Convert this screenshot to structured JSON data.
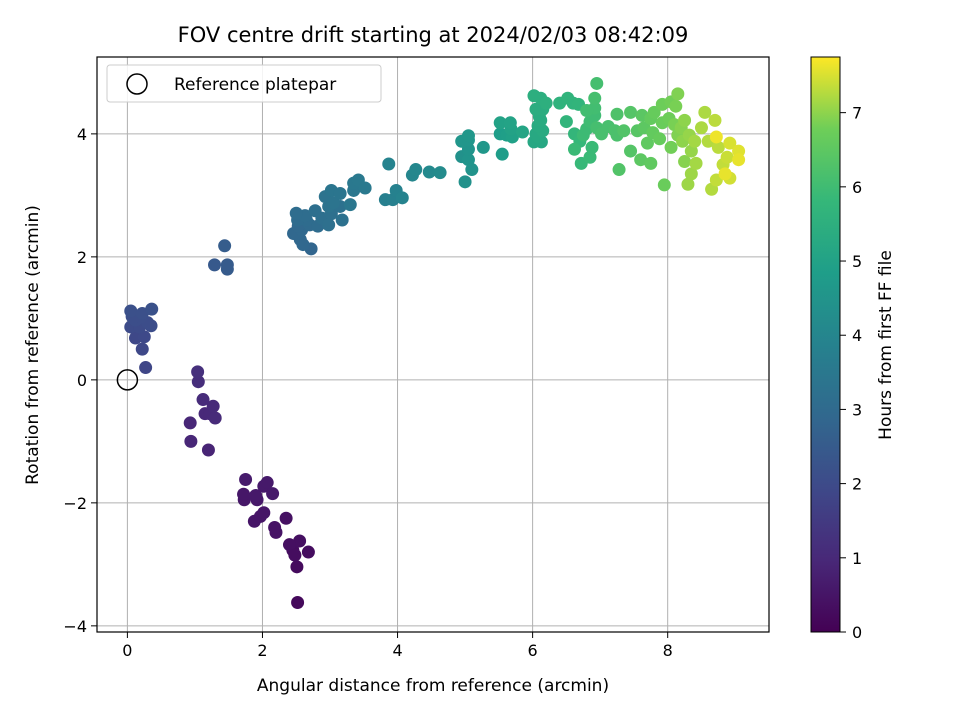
{
  "chart_data": {
    "type": "scatter",
    "title": "FOV centre drift starting at 2024/02/03 08:42:09",
    "xlabel": "Angular distance from reference (arcmin)",
    "ylabel": "Rotation from reference (arcmin)",
    "xlim": [
      -0.45,
      9.5
    ],
    "ylim": [
      -4.1,
      5.25
    ],
    "x_ticks": [
      0,
      2,
      4,
      6,
      8
    ],
    "y_ticks": [
      -4,
      -2,
      0,
      2,
      4
    ],
    "x_tick_labels": [
      "0",
      "2",
      "4",
      "6",
      "8"
    ],
    "y_tick_labels": [
      "−4",
      "−2",
      "0",
      "2",
      "4"
    ],
    "grid": true,
    "legend": {
      "placement": "upper-left",
      "entries": [
        {
          "label": "Reference platepar",
          "marker": "open-circle"
        }
      ]
    },
    "reference_point": {
      "x": 0,
      "y": 0
    },
    "colorbar": {
      "label": "Hours from first FF file",
      "range": [
        0,
        7.75
      ],
      "ticks": [
        0,
        1,
        2,
        3,
        4,
        5,
        6,
        7
      ],
      "tick_labels": [
        "0",
        "1",
        "2",
        "3",
        "4",
        "5",
        "6",
        "7"
      ],
      "colormap": "viridis"
    },
    "points": [
      [
        2.52,
        -3.62,
        0.2
      ],
      [
        2.51,
        -3.04,
        0.25
      ],
      [
        2.68,
        -2.8,
        0.3
      ],
      [
        2.45,
        -2.77,
        0.3
      ],
      [
        2.55,
        -2.62,
        0.35
      ],
      [
        2.4,
        -2.68,
        0.35
      ],
      [
        2.48,
        -2.85,
        0.3
      ],
      [
        2.35,
        -2.25,
        0.4
      ],
      [
        2.2,
        -2.48,
        0.45
      ],
      [
        2.18,
        -2.4,
        0.45
      ],
      [
        1.88,
        -2.3,
        0.5
      ],
      [
        1.97,
        -2.22,
        0.5
      ],
      [
        2.02,
        -2.16,
        0.5
      ],
      [
        1.73,
        -1.95,
        0.55
      ],
      [
        1.72,
        -1.86,
        0.55
      ],
      [
        1.92,
        -1.95,
        0.55
      ],
      [
        1.9,
        -1.88,
        0.6
      ],
      [
        2.02,
        -1.73,
        0.6
      ],
      [
        2.07,
        -1.67,
        0.6
      ],
      [
        2.15,
        -1.85,
        0.6
      ],
      [
        1.75,
        -1.62,
        0.65
      ],
      [
        1.2,
        -1.14,
        0.9
      ],
      [
        0.94,
        -1.0,
        0.95
      ],
      [
        0.93,
        -0.7,
        0.95
      ],
      [
        1.15,
        -0.55,
        1.0
      ],
      [
        1.22,
        -0.55,
        1.0
      ],
      [
        1.3,
        -0.62,
        1.05
      ],
      [
        1.27,
        -0.43,
        1.05
      ],
      [
        1.12,
        -0.32,
        1.1
      ],
      [
        1.05,
        -0.03,
        1.15
      ],
      [
        1.04,
        0.13,
        1.2
      ],
      [
        0.27,
        0.2,
        1.85
      ],
      [
        0.22,
        0.5,
        1.9
      ],
      [
        0.12,
        0.68,
        1.9
      ],
      [
        0.25,
        0.7,
        1.95
      ],
      [
        0.05,
        0.86,
        2.0
      ],
      [
        0.18,
        0.86,
        2.0
      ],
      [
        0.35,
        0.88,
        2.05
      ],
      [
        0.3,
        0.93,
        2.05
      ],
      [
        0.12,
        0.97,
        2.1
      ],
      [
        0.07,
        1.03,
        2.1
      ],
      [
        0.2,
        1.02,
        2.1
      ],
      [
        0.05,
        1.12,
        2.15
      ],
      [
        0.22,
        1.08,
        2.15
      ],
      [
        0.36,
        1.15,
        2.2
      ],
      [
        1.29,
        1.87,
        2.45
      ],
      [
        1.48,
        1.8,
        2.5
      ],
      [
        1.48,
        1.87,
        2.5
      ],
      [
        1.44,
        2.18,
        2.55
      ],
      [
        2.72,
        2.13,
        2.85
      ],
      [
        2.6,
        2.2,
        2.9
      ],
      [
        2.56,
        2.28,
        2.9
      ],
      [
        2.46,
        2.38,
        2.9
      ],
      [
        2.58,
        2.44,
        2.95
      ],
      [
        2.53,
        2.5,
        2.95
      ],
      [
        2.7,
        2.52,
        3.0
      ],
      [
        2.82,
        2.5,
        3.05
      ],
      [
        2.65,
        2.6,
        3.05
      ],
      [
        2.52,
        2.6,
        3.05
      ],
      [
        2.63,
        2.67,
        3.1
      ],
      [
        2.5,
        2.71,
        3.1
      ],
      [
        2.78,
        2.75,
        3.15
      ],
      [
        2.88,
        2.63,
        3.15
      ],
      [
        3.02,
        2.7,
        3.2
      ],
      [
        2.98,
        2.52,
        3.2
      ],
      [
        3.18,
        2.6,
        3.25
      ],
      [
        3.15,
        2.82,
        3.25
      ],
      [
        2.98,
        2.82,
        3.3
      ],
      [
        2.93,
        2.98,
        3.3
      ],
      [
        3.05,
        2.88,
        3.35
      ],
      [
        3.02,
        3.08,
        3.4
      ],
      [
        3.15,
        3.03,
        3.4
      ],
      [
        3.35,
        3.08,
        3.45
      ],
      [
        3.3,
        2.85,
        3.45
      ],
      [
        3.35,
        3.2,
        3.5
      ],
      [
        3.42,
        3.25,
        3.55
      ],
      [
        3.52,
        3.12,
        3.55
      ],
      [
        3.82,
        2.93,
        3.75
      ],
      [
        3.93,
        2.93,
        3.8
      ],
      [
        3.98,
        3.08,
        3.85
      ],
      [
        4.07,
        2.96,
        3.9
      ],
      [
        3.87,
        3.51,
        3.9
      ],
      [
        4.22,
        3.33,
        4.0
      ],
      [
        4.27,
        3.42,
        4.05
      ],
      [
        4.47,
        3.38,
        4.1
      ],
      [
        4.63,
        3.37,
        4.2
      ],
      [
        5.0,
        3.22,
        4.4
      ],
      [
        4.95,
        3.63,
        4.4
      ],
      [
        5.1,
        3.42,
        4.45
      ],
      [
        5.05,
        3.58,
        4.5
      ],
      [
        5.05,
        3.75,
        4.5
      ],
      [
        4.95,
        3.88,
        4.55
      ],
      [
        5.05,
        3.9,
        4.55
      ],
      [
        5.05,
        3.97,
        4.6
      ],
      [
        5.27,
        3.78,
        4.6
      ],
      [
        5.55,
        3.67,
        4.8
      ],
      [
        5.52,
        4.0,
        4.85
      ],
      [
        5.62,
        3.98,
        4.9
      ],
      [
        5.7,
        3.95,
        4.95
      ],
      [
        5.68,
        4.08,
        5.0
      ],
      [
        5.52,
        4.18,
        5.0
      ],
      [
        5.67,
        4.18,
        5.05
      ],
      [
        5.85,
        4.03,
        5.1
      ],
      [
        6.02,
        3.87,
        5.2
      ],
      [
        6.13,
        3.87,
        5.2
      ],
      [
        6.08,
        3.95,
        5.25
      ],
      [
        6.05,
        4.0,
        5.25
      ],
      [
        6.15,
        4.05,
        5.3
      ],
      [
        6.08,
        4.13,
        5.3
      ],
      [
        6.12,
        4.22,
        5.35
      ],
      [
        6.1,
        4.28,
        5.35
      ],
      [
        6.05,
        4.4,
        5.4
      ],
      [
        6.15,
        4.4,
        5.4
      ],
      [
        6.02,
        4.62,
        5.45
      ],
      [
        6.12,
        4.58,
        5.45
      ],
      [
        6.2,
        4.5,
        5.5
      ],
      [
        6.4,
        4.5,
        5.6
      ],
      [
        6.52,
        4.58,
        5.65
      ],
      [
        6.6,
        4.5,
        5.65
      ],
      [
        6.68,
        4.48,
        5.7
      ],
      [
        6.5,
        4.2,
        5.7
      ],
      [
        6.62,
        4.0,
        5.75
      ],
      [
        6.7,
        3.88,
        5.8
      ],
      [
        6.72,
        3.52,
        5.85
      ],
      [
        6.85,
        3.62,
        5.9
      ],
      [
        6.62,
        3.75,
        5.9
      ],
      [
        6.88,
        3.78,
        5.9
      ],
      [
        6.75,
        3.98,
        5.95
      ],
      [
        6.8,
        4.08,
        5.95
      ],
      [
        6.85,
        4.2,
        6.0
      ],
      [
        6.92,
        4.3,
        6.0
      ],
      [
        6.92,
        4.42,
        6.05
      ],
      [
        6.8,
        4.38,
        6.05
      ],
      [
        6.92,
        4.58,
        6.1
      ],
      [
        6.95,
        4.82,
        6.1
      ],
      [
        6.95,
        4.1,
        6.1
      ],
      [
        7.02,
        4.0,
        6.15
      ],
      [
        7.12,
        4.12,
        6.15
      ],
      [
        7.22,
        4.05,
        6.2
      ],
      [
        7.25,
        3.98,
        6.2
      ],
      [
        7.25,
        4.32,
        6.25
      ],
      [
        7.35,
        4.05,
        6.3
      ],
      [
        7.28,
        3.42,
        6.3
      ],
      [
        7.45,
        3.72,
        6.35
      ],
      [
        7.45,
        4.35,
        6.35
      ],
      [
        7.55,
        4.05,
        6.4
      ],
      [
        7.62,
        4.3,
        6.45
      ],
      [
        7.65,
        4.1,
        6.5
      ],
      [
        7.6,
        3.58,
        6.5
      ],
      [
        7.75,
        3.52,
        6.55
      ],
      [
        7.7,
        3.85,
        6.55
      ],
      [
        7.78,
        4.02,
        6.6
      ],
      [
        7.75,
        4.25,
        6.6
      ],
      [
        7.8,
        4.35,
        6.65
      ],
      [
        7.88,
        3.92,
        6.65
      ],
      [
        7.92,
        4.18,
        6.7
      ],
      [
        7.95,
        3.17,
        6.7
      ],
      [
        7.92,
        4.48,
        6.75
      ],
      [
        8.02,
        4.25,
        6.75
      ],
      [
        8.05,
        4.52,
        6.8
      ],
      [
        8.05,
        3.78,
        6.8
      ],
      [
        8.1,
        4.15,
        6.85
      ],
      [
        8.12,
        4.45,
        6.85
      ],
      [
        8.15,
        3.98,
        6.9
      ],
      [
        8.15,
        4.65,
        6.9
      ],
      [
        8.25,
        3.55,
        6.95
      ],
      [
        8.2,
        4.1,
        6.95
      ],
      [
        8.22,
        3.88,
        7.0
      ],
      [
        8.25,
        4.22,
        7.0
      ],
      [
        8.32,
        3.98,
        7.05
      ],
      [
        8.35,
        3.72,
        7.05
      ],
      [
        8.35,
        3.35,
        7.1
      ],
      [
        8.3,
        3.18,
        7.1
      ],
      [
        8.42,
        3.52,
        7.15
      ],
      [
        8.4,
        3.88,
        7.15
      ],
      [
        8.5,
        4.1,
        7.2
      ],
      [
        8.55,
        4.35,
        7.2
      ],
      [
        8.6,
        3.88,
        7.25
      ],
      [
        8.65,
        3.1,
        7.25
      ],
      [
        8.7,
        4.22,
        7.3
      ],
      [
        8.75,
        3.78,
        7.3
      ],
      [
        8.72,
        3.25,
        7.35
      ],
      [
        8.82,
        3.5,
        7.35
      ],
      [
        8.88,
        3.62,
        7.4
      ],
      [
        8.92,
        3.28,
        7.45
      ],
      [
        8.92,
        3.85,
        7.5
      ],
      [
        9.05,
        3.72,
        7.55
      ],
      [
        9.05,
        3.58,
        7.6
      ],
      [
        8.85,
        3.35,
        7.6
      ],
      [
        8.72,
        3.95,
        7.65
      ]
    ]
  }
}
